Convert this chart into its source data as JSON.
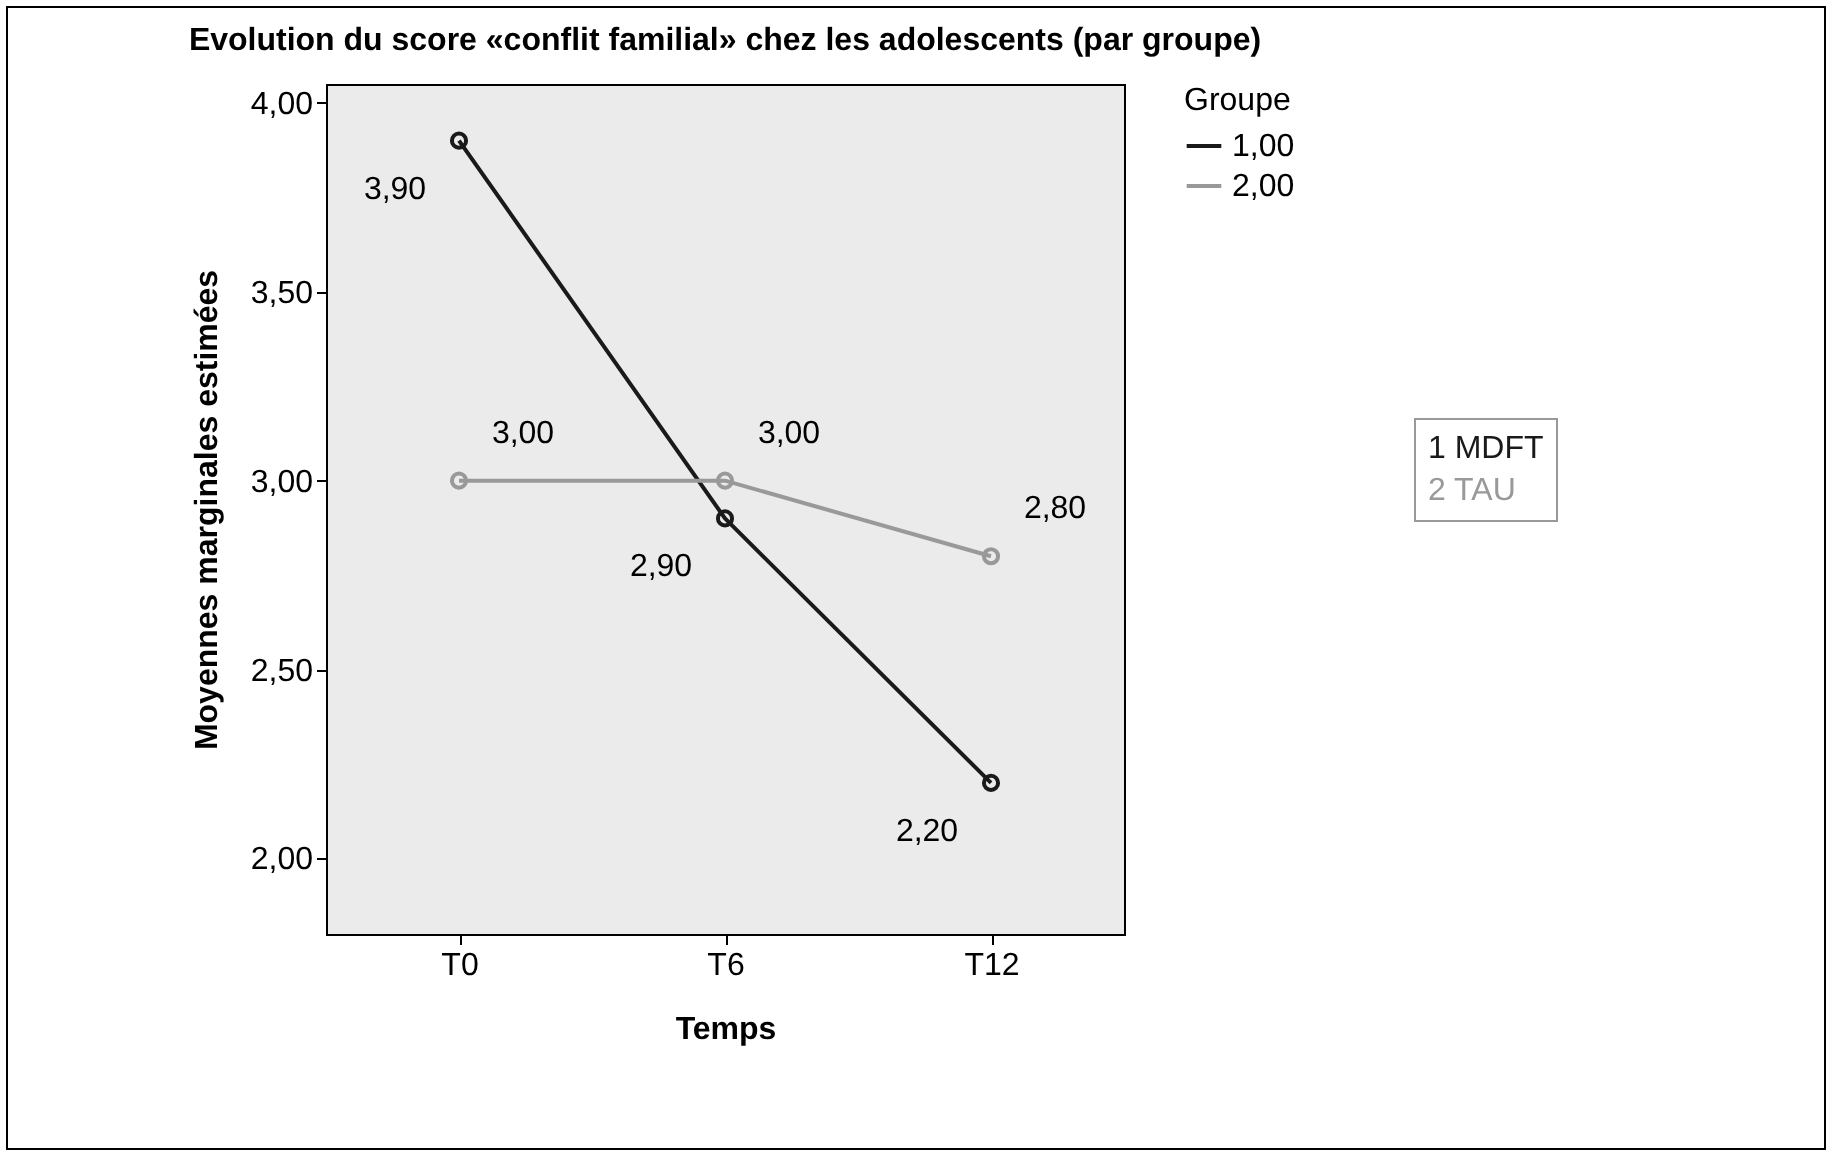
{
  "chart_data": {
    "type": "line",
    "title": "Evolution du score «conflit familial» chez les adolescents (par groupe)",
    "xlabel": "Temps",
    "ylabel": "Moyennes marginales estimées",
    "legend_title": "Groupe",
    "categories": [
      "T0",
      "T6",
      "T12"
    ],
    "series": [
      {
        "name": "1,00",
        "color": "#1a1a1a",
        "values": [
          3.9,
          2.9,
          2.2
        ],
        "value_labels": [
          "3,90",
          "2,90",
          "2,20"
        ]
      },
      {
        "name": "2,00",
        "color": "#999999",
        "values": [
          3.0,
          3.0,
          2.8
        ],
        "value_labels": [
          "3,00",
          "3,00",
          "2,80"
        ]
      }
    ],
    "ylim": [
      1.8,
      4.05
    ],
    "yticks": [
      {
        "value": 2,
        "label": "2,00"
      },
      {
        "value": 2.5,
        "label": "2,50"
      },
      {
        "value": 3,
        "label": "3,00"
      },
      {
        "value": 3.5,
        "label": "3,50"
      },
      {
        "value": 4,
        "label": "4,00"
      }
    ],
    "annotations": [
      "1 MDFT",
      "2 TAU"
    ],
    "marker": "circle",
    "legend": "top right",
    "grid": false
  }
}
